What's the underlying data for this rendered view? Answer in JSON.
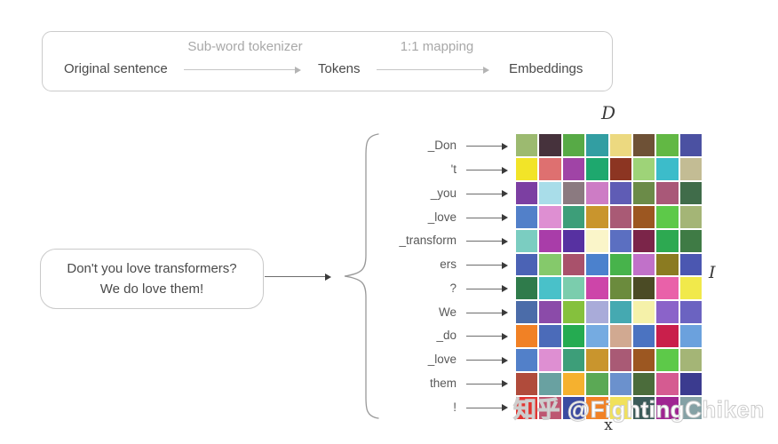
{
  "flow": {
    "steps": [
      "Original sentence",
      "Tokens",
      "Embeddings"
    ],
    "arrow_labels": [
      "Sub-word tokenizer",
      "1:1 mapping"
    ]
  },
  "sentence_box": {
    "lines": [
      "Don't you love transformers?",
      "We do love them!"
    ]
  },
  "tokens": [
    "_Don",
    "'t",
    "_you",
    "_love",
    "_transform",
    "ers",
    "?",
    "We",
    "_do",
    "_love",
    "them",
    "!"
  ],
  "matrix": {
    "label_top": "D",
    "label_right": "I",
    "label_bottom": "x",
    "rows": [
      [
        "#9cba70",
        "#46323c",
        "#57aa46",
        "#329ea2",
        "#ecd980",
        "#6e5136",
        "#62b844",
        "#4b51a2"
      ],
      [
        "#f2e428",
        "#de7070",
        "#a044a6",
        "#1ea86e",
        "#8c3522",
        "#9ed378",
        "#3cbcca",
        "#c3bc94"
      ],
      [
        "#7c3fa2",
        "#a9dde9",
        "#8b7a80",
        "#cd7cc5",
        "#5f5cb5",
        "#6b8b48",
        "#a95878",
        "#406c4a"
      ],
      [
        "#5280c9",
        "#de8fd2",
        "#3d9e79",
        "#c9952d",
        "#a95a75",
        "#9c5721",
        "#5dc949",
        "#a4b576"
      ],
      [
        "#7bcdc1",
        "#a93da9",
        "#5731a1",
        "#faf5c9",
        "#5b6fc1",
        "#7b2549",
        "#2da951",
        "#3f7b45"
      ],
      [
        "#4b63b5",
        "#85c96b",
        "#a9516b",
        "#4b81cd",
        "#47b34b",
        "#c171c9",
        "#8b7b21",
        "#4b57b1"
      ],
      [
        "#2f7b4b",
        "#49c1c9",
        "#7bcdad",
        "#cd45a9",
        "#6b8b3d",
        "#4b4b25",
        "#e961a9",
        "#f1e94b"
      ],
      [
        "#4b6ca9",
        "#8b4ba9",
        "#85c13d",
        "#a9abd9",
        "#45a9b1",
        "#f5f1a9",
        "#8b63c9",
        "#6b63c1"
      ],
      [
        "#f18125",
        "#4b6bb9",
        "#25ab51",
        "#75abe1",
        "#d1a991",
        "#4b73c1",
        "#c91f4b",
        "#6ba1dd"
      ],
      [
        "#5280c9",
        "#de8fd2",
        "#3d9e79",
        "#c9952d",
        "#a95a75",
        "#9c5721",
        "#5dc949",
        "#a4b576"
      ],
      [
        "#b04b3b",
        "#69a1a1",
        "#f5b12f",
        "#5ba955",
        "#6b91cd",
        "#4b6c3b",
        "#d55b91",
        "#3b3b8f"
      ],
      [
        "#e13531",
        "#bd5671",
        "#3b4ba1",
        "#f18125",
        "#f1e15b",
        "#3b5b59",
        "#9f2591",
        "#85a1a5"
      ]
    ]
  },
  "watermark": "知乎 @FightingChiken",
  "colors": {
    "border": "#cbcbcb",
    "text_dark": "#4a4a4a",
    "text_gray": "#a8a8a8",
    "arrow_light": "#c6c6c6",
    "arrow_dark": "#3a3a3a"
  }
}
